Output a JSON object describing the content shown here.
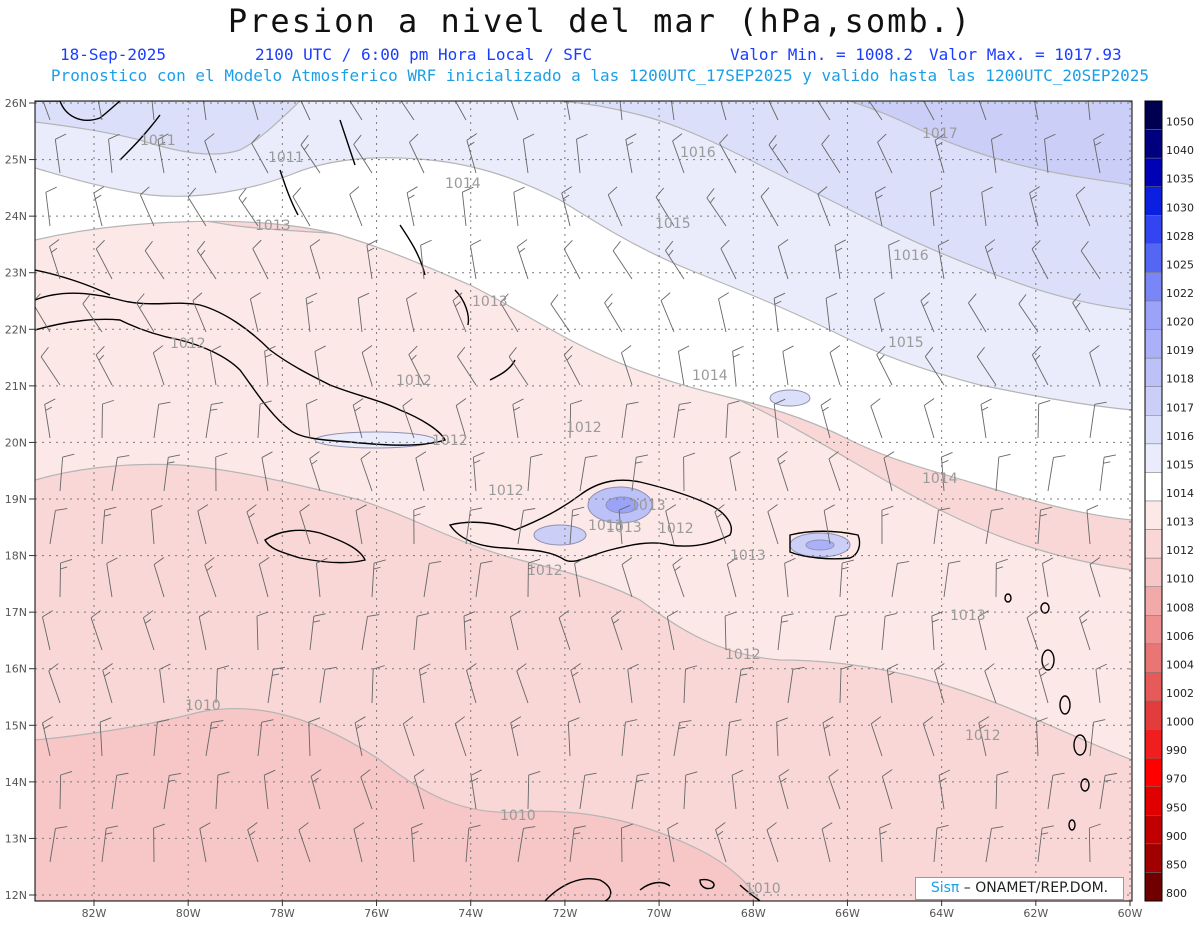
{
  "title": "Presion a nivel del mar (hPa,somb.)",
  "date": "18-Sep-2025",
  "time_info": "2100 UTC / 6:00 pm Hora Local / SFC",
  "valor_min": "Valor Min. = 1008.2",
  "valor_max": "Valor Max. = 1017.93",
  "forecast_note": "Pronostico con el Modelo Atmosferico WRF inicializado a las 1200UTC_17SEP2025 y valido hasta las  1200UTC_20SEP2025",
  "credit_brand": "Sisπ",
  "credit_text": " – ONAMET/REP.DOM.",
  "lat_labels": [
    "26N",
    "25N",
    "24N",
    "23N",
    "22N",
    "21N",
    "20N",
    "19N",
    "18N",
    "17N",
    "16N",
    "15N",
    "14N",
    "13N",
    "12N"
  ],
  "lon_labels": [
    "82W",
    "80W",
    "78W",
    "76W",
    "74W",
    "72W",
    "70W",
    "68W",
    "66W",
    "64W",
    "62W",
    "60W"
  ],
  "legend": [
    {
      "label": "1050",
      "color": "#000050"
    },
    {
      "label": "1040",
      "color": "#00007e"
    },
    {
      "label": "1035",
      "color": "#0000b4"
    },
    {
      "label": "1030",
      "color": "#0b1fe0"
    },
    {
      "label": "1028",
      "color": "#3345f0"
    },
    {
      "label": "1025",
      "color": "#5566f5"
    },
    {
      "label": "1022",
      "color": "#7a86f8"
    },
    {
      "label": "1020",
      "color": "#9aa3f8"
    },
    {
      "label": "1019",
      "color": "#aab1f8"
    },
    {
      "label": "1018",
      "color": "#bcc1f8"
    },
    {
      "label": "1017",
      "color": "#cbcff8"
    },
    {
      "label": "1016",
      "color": "#dcdff9"
    },
    {
      "label": "1015",
      "color": "#eaecfb"
    },
    {
      "label": "1014",
      "color": "#ffffff"
    },
    {
      "label": "1013",
      "color": "#fde8e8"
    },
    {
      "label": "1012",
      "color": "#fad7d7"
    },
    {
      "label": "1010",
      "color": "#f7c6c6"
    },
    {
      "label": "1008",
      "color": "#f2a9a9"
    },
    {
      "label": "1006",
      "color": "#ee9090"
    },
    {
      "label": "1004",
      "color": "#ea7575"
    },
    {
      "label": "1002",
      "color": "#e65a5a"
    },
    {
      "label": "1000",
      "color": "#e23c3c"
    },
    {
      "label": "990",
      "color": "#f01e1e"
    },
    {
      "label": "970",
      "color": "#ff0000"
    },
    {
      "label": "950",
      "color": "#e00000"
    },
    {
      "label": "900",
      "color": "#c00000"
    },
    {
      "label": "850",
      "color": "#a00000"
    },
    {
      "label": "800",
      "color": "#700000"
    }
  ],
  "isobar_labels": [
    "1011",
    "1011",
    "1013",
    "1014",
    "1012",
    "1016",
    "1017",
    "1015",
    "1016",
    "1015",
    "1013",
    "1012",
    "1012",
    "1012",
    "1014",
    "1014",
    "1012",
    "1013",
    "1013",
    "1013",
    "1012",
    "1013",
    "1012",
    "1012",
    "1010",
    "1010",
    "1010",
    "1013",
    "1012"
  ]
}
